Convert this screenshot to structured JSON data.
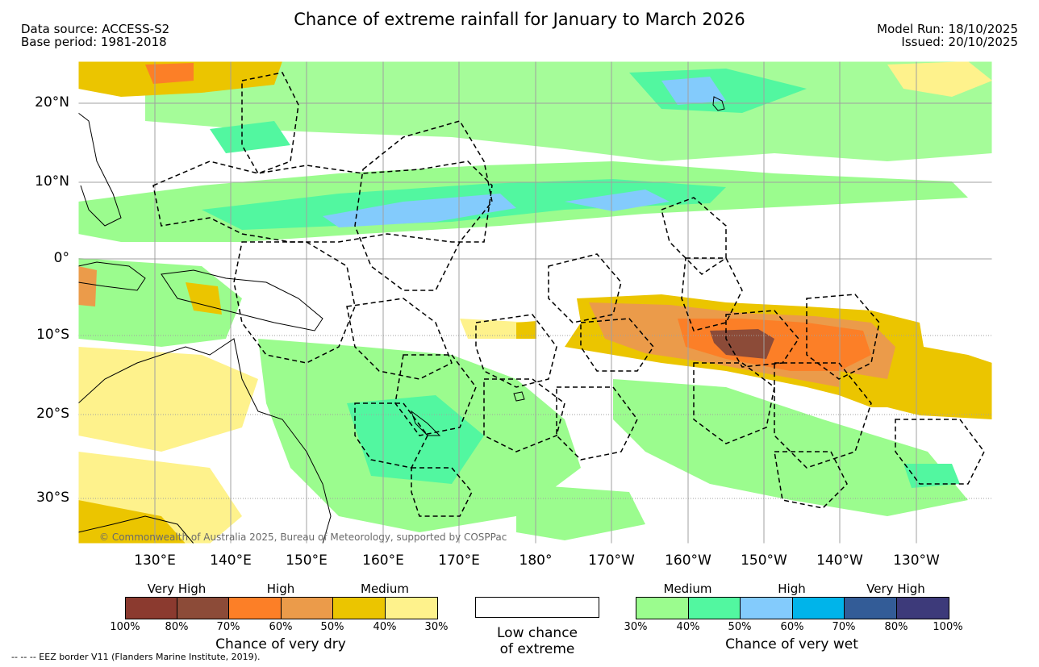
{
  "header": {
    "title": "Chance of extreme rainfall for January to March 2026",
    "data_source": "Data source: ACCESS-S2",
    "base_period": "Base period: 1981-2018",
    "model_run": "Model Run: 18/10/2025",
    "issued": "Issued: 20/10/2025"
  },
  "map": {
    "lat_labels": [
      "20°N",
      "10°N",
      "0°",
      "10°S",
      "20°S",
      "30°S"
    ],
    "lon_labels": [
      "130°E",
      "140°E",
      "150°E",
      "160°E",
      "170°E",
      "180°",
      "170°W",
      "160°W",
      "150°W",
      "140°W",
      "130°W"
    ],
    "copyright": "© Commonwealth of Australia 2025, Bureau of Meteorology, supported by COSPPac",
    "colors": {
      "dry_very_high_1": "#8b3a2f",
      "dry_very_high_2": "#8c4b38",
      "dry_high_1": "#fc7f27",
      "dry_high_2": "#eb9b4a",
      "dry_medium_1": "#ebc500",
      "dry_medium_2": "#fef28c",
      "wet_medium_1": "#9bfc8e",
      "wet_medium_2": "#52f7a0",
      "wet_high_1": "#83cbfc",
      "wet_high_2": "#00b4ea",
      "wet_very_high_1": "#335c97",
      "wet_very_high_2": "#3d3a7a",
      "land": "#ffffff",
      "gridline": "#a0a0a0"
    }
  },
  "legend": {
    "dry": {
      "categories": [
        "Very High",
        "High",
        "Medium"
      ],
      "ticks": [
        "100%",
        "80%",
        "70%",
        "60%",
        "50%",
        "40%",
        "30%"
      ],
      "caption": "Chance of very dry"
    },
    "low": {
      "caption_line1": "Low chance",
      "caption_line2": "of extreme"
    },
    "wet": {
      "categories": [
        "Medium",
        "High",
        "Very High"
      ],
      "ticks": [
        "30%",
        "40%",
        "50%",
        "60%",
        "70%",
        "80%",
        "100%"
      ],
      "caption": "Chance of very wet"
    }
  },
  "footer": {
    "eez_note": "-- -- -- EEZ border V11 (Flanders Marine Institute, 2019)."
  }
}
